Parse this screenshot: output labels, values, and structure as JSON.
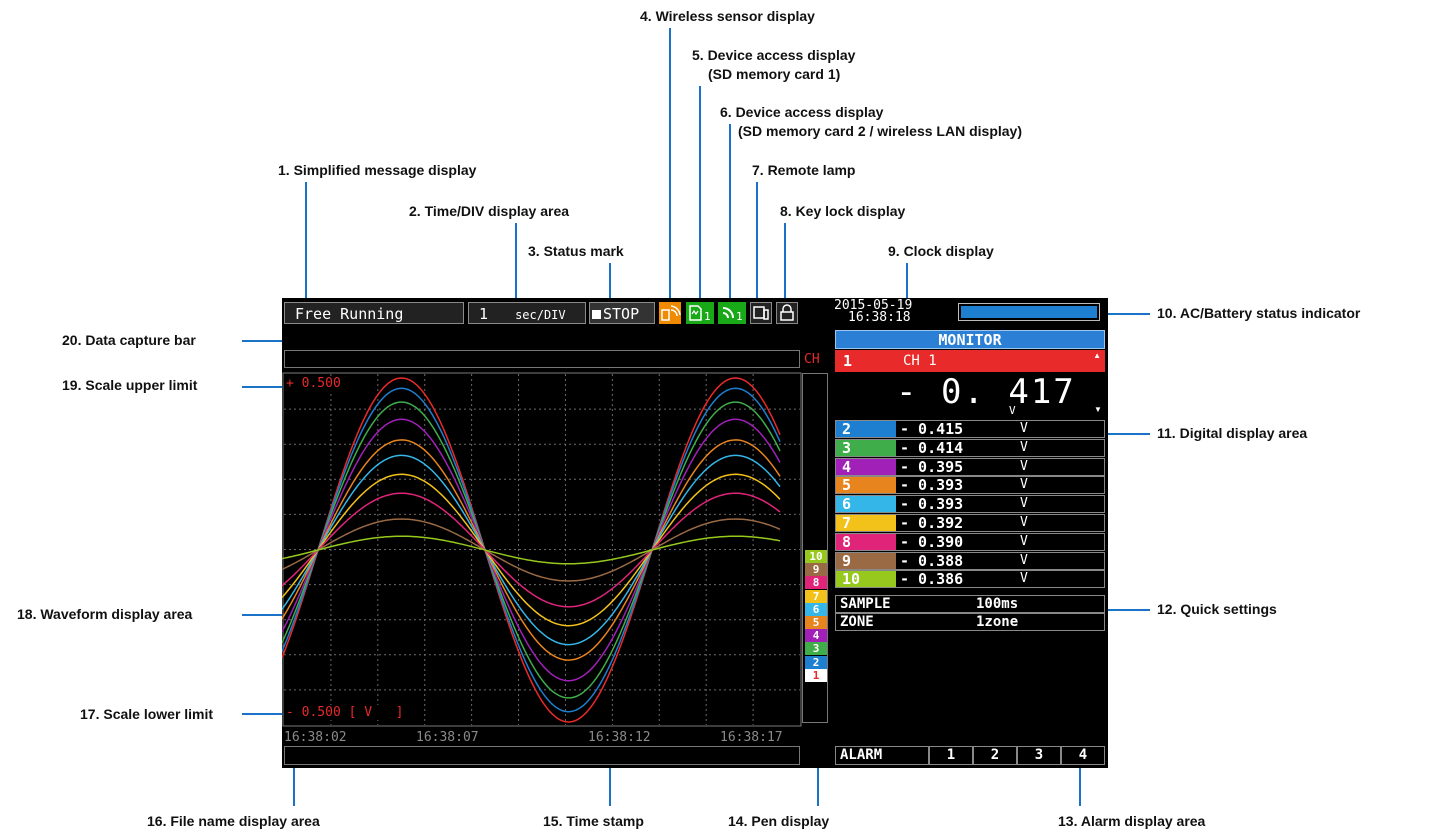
{
  "callouts": {
    "c1": "1. Simplified message display",
    "c2": "2. Time/DIV display area",
    "c3": "3. Status mark",
    "c4": "4. Wireless sensor display",
    "c5a": "5. Device access display",
    "c5b": "(SD memory card 1)",
    "c6a": "6. Device access display",
    "c6b": "(SD memory card 2 / wireless LAN display)",
    "c7": "7. Remote lamp",
    "c8": "8. Key lock display",
    "c9": "9. Clock display",
    "c10": "10. AC/Battery status indicator",
    "c11": "11. Digital display area",
    "c12": "12. Quick settings",
    "c13": "13. Alarm display area",
    "c14": "14. Pen display",
    "c15": "15. Time stamp",
    "c16": "16. File name display area",
    "c17": "17. Scale lower limit",
    "c18": "18. Waveform display area",
    "c19": "19. Scale upper limit",
    "c20": "20. Data capture bar"
  },
  "screen": {
    "message": "Free Running",
    "time_div_value": "1",
    "time_div_unit": "sec/DIV",
    "status": "STOP",
    "sd_indicator_num": "1",
    "wlan_indicator_num": "1",
    "clock_date": "2015-05-19",
    "clock_time": "16:38:18",
    "battery_level": 1.0,
    "ch_label": "CH",
    "scale_upper": "+ 0.500",
    "scale_lower": "- 0.500 [ V   ]",
    "timestamps": [
      "16:38:02",
      "16:38:07",
      "16:38:12",
      "16:38:17"
    ],
    "monitor_title": "MONITOR",
    "selected_channel": {
      "num": "1",
      "name": "CH 1",
      "value": "- 0. 417",
      "unit": "V"
    },
    "channels": [
      {
        "num": "2",
        "value": "- 0.415",
        "unit": "V",
        "color": "#1e7fd0"
      },
      {
        "num": "3",
        "value": "- 0.414",
        "unit": "V",
        "color": "#3fae4a"
      },
      {
        "num": "4",
        "value": "- 0.395",
        "unit": "V",
        "color": "#a020b8"
      },
      {
        "num": "5",
        "value": "- 0.393",
        "unit": "V",
        "color": "#e8841e"
      },
      {
        "num": "6",
        "value": "- 0.393",
        "unit": "V",
        "color": "#35b6e8"
      },
      {
        "num": "7",
        "value": "- 0.392",
        "unit": "V",
        "color": "#f2c21a"
      },
      {
        "num": "8",
        "value": "- 0.390",
        "unit": "V",
        "color": "#e0247a"
      },
      {
        "num": "9",
        "value": "- 0.388",
        "unit": "V",
        "color": "#9a6a44"
      },
      {
        "num": "10",
        "value": "- 0.386",
        "unit": "V",
        "color": "#96c81e"
      }
    ],
    "quick_settings": [
      {
        "label": "SAMPLE",
        "value": "100ms"
      },
      {
        "label": "ZONE",
        "value": "1zone"
      }
    ],
    "alarm_label": "ALARM",
    "alarms": [
      "1",
      "2",
      "3",
      "4"
    ],
    "pens": [
      "10",
      "9",
      "8",
      "7",
      "6",
      "5",
      "4",
      "3",
      "2",
      "1"
    ],
    "colors": {
      "ch1": "#e82a2a",
      "monitor_header": "#2b7fd4",
      "status_orange": "#f08a00",
      "access_green": "#18a818"
    }
  }
}
